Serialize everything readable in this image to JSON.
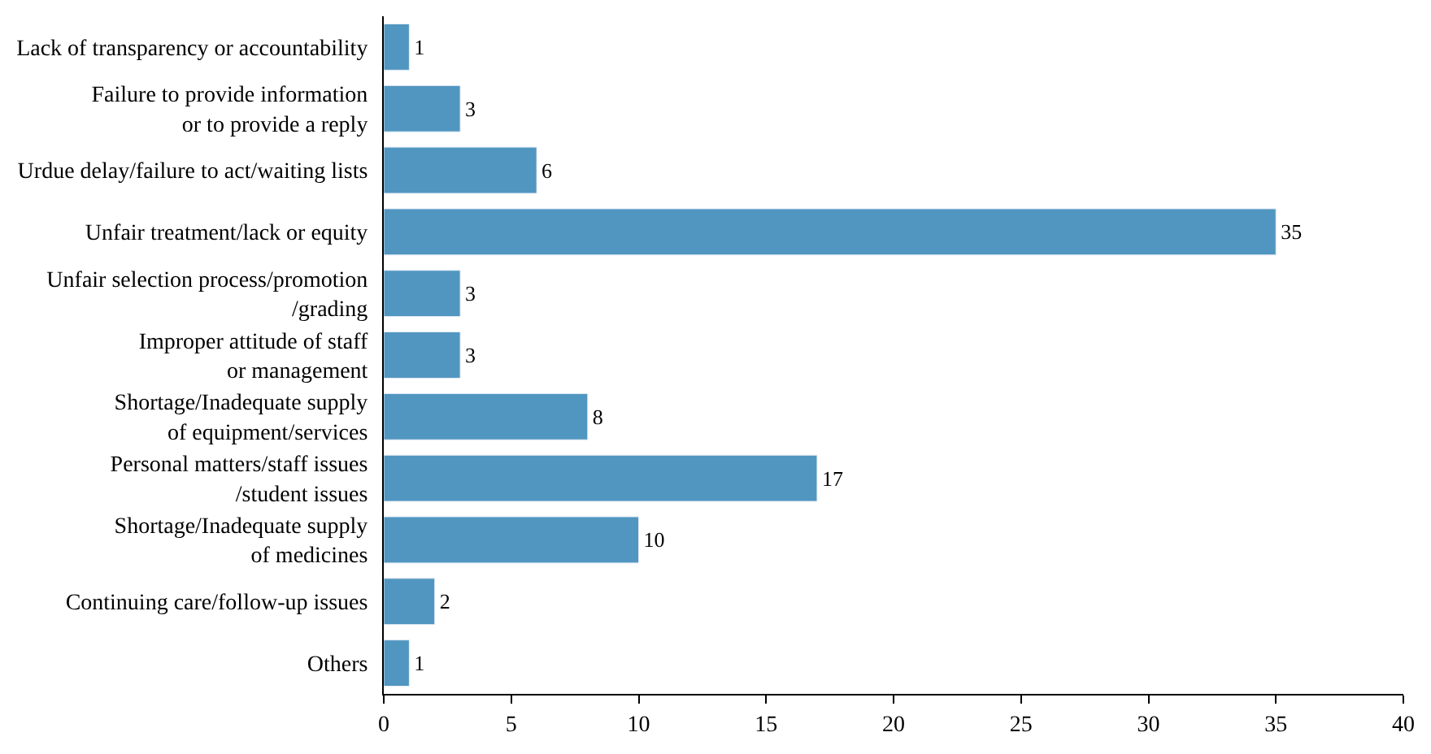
{
  "chart_data": {
    "type": "bar",
    "orientation": "horizontal",
    "categories": [
      "Lack of transparency or accountability",
      "Failure to provide information\nor to provide a reply",
      "Urdue delay/failure to act/waiting lists",
      "Unfair treatment/lack or equity",
      "Unfair selection process/promotion\n/grading",
      "Improper attitude of staff\nor management",
      "Shortage/Inadequate supply\nof equipment/services",
      "Personal matters/staff issues\n/student issues",
      "Shortage/Inadequate supply\nof medicines",
      "Continuing care/follow-up issues",
      "Others"
    ],
    "values": [
      1,
      3,
      6,
      35,
      3,
      3,
      8,
      17,
      10,
      2,
      1
    ],
    "color": "#5096c0",
    "xlim": [
      0,
      40
    ],
    "xticks": [
      0,
      5,
      10,
      15,
      20,
      25,
      30,
      35,
      40
    ],
    "data_labels": true
  }
}
